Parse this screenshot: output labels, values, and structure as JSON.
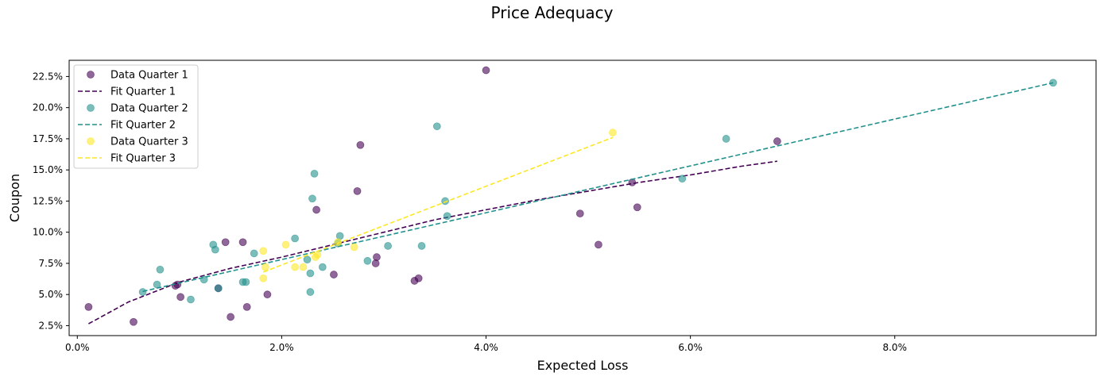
{
  "chart_data": {
    "type": "scatter",
    "title": "Price Adequacy",
    "xlabel": "Expected Loss",
    "ylabel": "Coupon",
    "xlim": [
      -0.0008,
      0.0997
    ],
    "ylim": [
      0.017,
      0.238
    ],
    "x_ticks": [
      0.0,
      0.02,
      0.04,
      0.06,
      0.08
    ],
    "x_tick_labels": [
      "0.0%",
      "2.0%",
      "4.0%",
      "6.0%",
      "8.0%"
    ],
    "y_ticks": [
      0.025,
      0.05,
      0.075,
      0.1,
      0.125,
      0.15,
      0.175,
      0.2,
      0.225
    ],
    "y_tick_labels": [
      "2.5%",
      "5.0%",
      "7.5%",
      "10.0%",
      "12.5%",
      "15.0%",
      "17.5%",
      "20.0%",
      "22.5%"
    ],
    "grid": false,
    "legend_position": "top-left",
    "series": [
      {
        "name": "Data Quarter 1",
        "kind": "scatter",
        "color": "#440154",
        "alpha": 0.6,
        "points": [
          [
            0.0011,
            0.04
          ],
          [
            0.0055,
            0.028
          ],
          [
            0.0096,
            0.057
          ],
          [
            0.0098,
            0.058
          ],
          [
            0.0101,
            0.048
          ],
          [
            0.0138,
            0.055
          ],
          [
            0.0145,
            0.092
          ],
          [
            0.015,
            0.032
          ],
          [
            0.0162,
            0.092
          ],
          [
            0.0166,
            0.04
          ],
          [
            0.0186,
            0.05
          ],
          [
            0.0234,
            0.118
          ],
          [
            0.0251,
            0.066
          ],
          [
            0.0274,
            0.133
          ],
          [
            0.0277,
            0.17
          ],
          [
            0.0292,
            0.075
          ],
          [
            0.0293,
            0.08
          ],
          [
            0.033,
            0.061
          ],
          [
            0.0334,
            0.063
          ],
          [
            0.04,
            0.23
          ],
          [
            0.0492,
            0.115
          ],
          [
            0.051,
            0.09
          ],
          [
            0.0543,
            0.14
          ],
          [
            0.0548,
            0.12
          ],
          [
            0.0685,
            0.173
          ]
        ]
      },
      {
        "name": "Fit Quarter 1",
        "kind": "line",
        "color": "#440154",
        "dash": true,
        "points": [
          [
            0.0011,
            0.0265
          ],
          [
            0.005,
            0.044
          ],
          [
            0.01,
            0.06
          ],
          [
            0.015,
            0.071
          ],
          [
            0.02,
            0.08
          ],
          [
            0.025,
            0.09
          ],
          [
            0.03,
            0.1
          ],
          [
            0.035,
            0.11
          ],
          [
            0.04,
            0.118
          ],
          [
            0.045,
            0.126
          ],
          [
            0.05,
            0.133
          ],
          [
            0.055,
            0.14
          ],
          [
            0.06,
            0.146
          ],
          [
            0.065,
            0.153
          ],
          [
            0.0685,
            0.157
          ]
        ]
      },
      {
        "name": "Data Quarter 2",
        "kind": "scatter",
        "color": "#21918c",
        "alpha": 0.6,
        "points": [
          [
            0.0064,
            0.052
          ],
          [
            0.0078,
            0.058
          ],
          [
            0.0081,
            0.07
          ],
          [
            0.0111,
            0.046
          ],
          [
            0.0124,
            0.062
          ],
          [
            0.0133,
            0.09
          ],
          [
            0.0135,
            0.086
          ],
          [
            0.0138,
            0.055
          ],
          [
            0.0162,
            0.06
          ],
          [
            0.0165,
            0.06
          ],
          [
            0.0173,
            0.083
          ],
          [
            0.0213,
            0.095
          ],
          [
            0.0225,
            0.078
          ],
          [
            0.0228,
            0.067
          ],
          [
            0.0228,
            0.052
          ],
          [
            0.023,
            0.127
          ],
          [
            0.0232,
            0.147
          ],
          [
            0.024,
            0.072
          ],
          [
            0.0255,
            0.091
          ],
          [
            0.0257,
            0.097
          ],
          [
            0.0284,
            0.077
          ],
          [
            0.0304,
            0.089
          ],
          [
            0.0337,
            0.089
          ],
          [
            0.0352,
            0.185
          ],
          [
            0.036,
            0.125
          ],
          [
            0.0362,
            0.113
          ],
          [
            0.0592,
            0.143
          ],
          [
            0.0635,
            0.175
          ],
          [
            0.0955,
            0.22
          ]
        ]
      },
      {
        "name": "Fit Quarter 2",
        "kind": "line",
        "color": "#21918c",
        "dash": true,
        "points": [
          [
            0.0064,
            0.0525
          ],
          [
            0.0955,
            0.22
          ]
        ]
      },
      {
        "name": "Data Quarter 3",
        "kind": "scatter",
        "color": "#fde725",
        "alpha": 0.6,
        "points": [
          [
            0.0182,
            0.085
          ],
          [
            0.0182,
            0.063
          ],
          [
            0.0184,
            0.072
          ],
          [
            0.0204,
            0.09
          ],
          [
            0.0213,
            0.072
          ],
          [
            0.0221,
            0.072
          ],
          [
            0.0233,
            0.08
          ],
          [
            0.0235,
            0.082
          ],
          [
            0.0255,
            0.092
          ],
          [
            0.0271,
            0.088
          ],
          [
            0.0524,
            0.18
          ]
        ]
      },
      {
        "name": "Fit Quarter 3",
        "kind": "line",
        "color": "#fde725",
        "dash": true,
        "points": [
          [
            0.0182,
            0.068
          ],
          [
            0.0524,
            0.176
          ]
        ]
      }
    ]
  }
}
